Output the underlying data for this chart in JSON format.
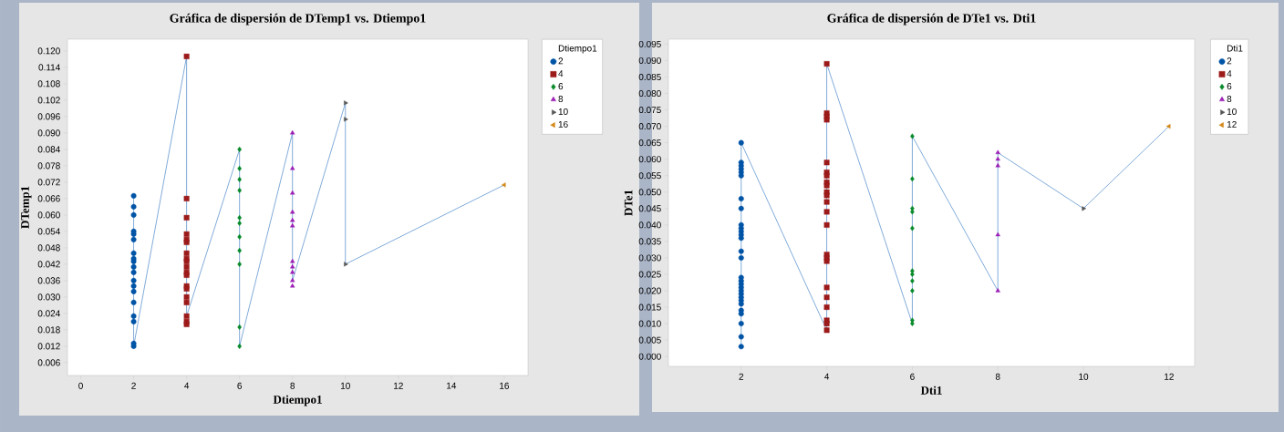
{
  "chart_data": [
    {
      "type": "scatter",
      "title": "Gráfica de dispersión de DTemp1 vs. Dtiempo1",
      "xlabel": "Dtiempo1",
      "ylabel": "DTemp1",
      "legend_title": "Dtiempo1",
      "legend": "right",
      "xlim": [
        -0.5,
        16.9
      ],
      "ylim": [
        0.0013,
        0.1243
      ],
      "xticks": [
        0,
        2,
        4,
        6,
        8,
        10,
        12,
        14,
        16
      ],
      "yticks": [
        0.006,
        0.012,
        0.018,
        0.024,
        {
          "value": 0.03,
          "label": "0.030"
        },
        0.036,
        0.042,
        0.048,
        0.054,
        {
          "value": 0.06,
          "label": "0.060"
        },
        0.066,
        0.072,
        0.078,
        0.084,
        {
          "value": 0.09,
          "label": "0.090"
        },
        0.096,
        0.102,
        0.108,
        0.114,
        {
          "value": 0.12,
          "label": "0.120"
        }
      ],
      "series": [
        {
          "type": "line",
          "color": "#4a86c8",
          "x": [
            2,
            2,
            4,
            4,
            6,
            6,
            8,
            8,
            10,
            10,
            16
          ],
          "values": [
            0.067,
            0.012,
            0.118,
            0.023,
            0.084,
            0.012,
            0.09,
            0.036,
            0.101,
            0.042,
            0.071
          ]
        },
        {
          "name": "2",
          "marker": "circle",
          "color": "#0054a6",
          "x": [
            2,
            2,
            2,
            2,
            2,
            2,
            2,
            2,
            2,
            2,
            2,
            2,
            2,
            2,
            2,
            2,
            2,
            2,
            2
          ],
          "values": [
            0.067,
            0.063,
            0.06,
            0.054,
            0.053,
            0.051,
            0.046,
            0.044,
            0.043,
            0.041,
            0.039,
            0.036,
            0.034,
            0.032,
            0.028,
            0.023,
            0.021,
            0.013,
            0.012
          ]
        },
        {
          "name": "4",
          "marker": "square",
          "color": "#9c1a1a",
          "x": [
            4,
            4,
            4,
            4,
            4,
            4,
            4,
            4,
            4,
            4,
            4,
            4,
            4,
            4,
            4,
            4,
            4,
            4,
            4
          ],
          "values": [
            0.118,
            0.066,
            0.059,
            0.053,
            0.051,
            0.05,
            0.046,
            0.044,
            0.043,
            0.041,
            0.039,
            0.038,
            0.034,
            0.033,
            0.03,
            0.028,
            0.023,
            0.021,
            0.02
          ]
        },
        {
          "name": "6",
          "marker": "diamond",
          "color": "#088a2a",
          "x": [
            6,
            6,
            6,
            6,
            6,
            6,
            6,
            6,
            6,
            6,
            6
          ],
          "values": [
            0.084,
            0.077,
            0.073,
            0.069,
            0.059,
            0.057,
            0.052,
            0.047,
            0.042,
            0.019,
            0.012
          ]
        },
        {
          "name": "8",
          "marker": "triangle",
          "color": "#9b1fb5",
          "x": [
            8,
            8,
            8,
            8,
            8,
            8,
            8,
            8,
            8,
            8,
            8
          ],
          "values": [
            0.09,
            0.077,
            0.068,
            0.061,
            0.058,
            0.056,
            0.043,
            0.041,
            0.039,
            0.036,
            0.034
          ]
        },
        {
          "name": "10",
          "marker": "triangle-right",
          "color": "#555555",
          "x": [
            10,
            10,
            10
          ],
          "values": [
            0.101,
            0.095,
            0.042
          ]
        },
        {
          "name": "16",
          "marker": "triangle-left",
          "color": "#d4891a",
          "x": [
            16
          ],
          "values": [
            0.071
          ]
        }
      ]
    },
    {
      "type": "scatter",
      "title": "Gráfica de dispersión de DTe1 vs. Dti1",
      "xlabel": "Dti1",
      "ylabel": "DTe1",
      "legend_title": "Dti1",
      "legend": "right",
      "xlim": [
        0.3,
        12.6
      ],
      "ylim": [
        -0.003,
        0.0965
      ],
      "xticks": [
        2,
        4,
        6,
        8,
        10,
        12
      ],
      "yticks": [
        {
          "value": 0,
          "label": "0.000"
        },
        0.005,
        {
          "value": 0.01,
          "label": "0.010"
        },
        0.015,
        {
          "value": 0.02,
          "label": "0.020"
        },
        0.025,
        {
          "value": 0.03,
          "label": "0.030"
        },
        0.035,
        {
          "value": 0.04,
          "label": "0.040"
        },
        0.045,
        {
          "value": 0.05,
          "label": "0.050"
        },
        0.055,
        {
          "value": 0.06,
          "label": "0.060"
        },
        0.065,
        {
          "value": 0.07,
          "label": "0.070"
        },
        0.075,
        {
          "value": 0.08,
          "label": "0.080"
        },
        0.085,
        {
          "value": 0.09,
          "label": "0.090"
        },
        0.095
      ],
      "series": [
        {
          "type": "line",
          "color": "#4a86c8",
          "x": [
            2,
            2,
            4,
            4,
            6,
            6,
            8,
            8,
            10,
            12
          ],
          "values": [
            0.003,
            0.065,
            0.008,
            0.089,
            0.01,
            0.067,
            0.02,
            0.062,
            0.045,
            0.07
          ]
        },
        {
          "name": "2",
          "marker": "circle",
          "color": "#0054a6",
          "x": [
            2,
            2,
            2,
            2,
            2,
            2,
            2,
            2,
            2,
            2,
            2,
            2,
            2,
            2,
            2,
            2,
            2,
            2,
            2,
            2,
            2,
            2,
            2,
            2,
            2,
            2,
            2,
            2,
            2
          ],
          "values": [
            0.065,
            0.059,
            0.058,
            0.057,
            0.056,
            0.055,
            0.048,
            0.045,
            0.04,
            0.039,
            0.038,
            0.037,
            0.036,
            0.032,
            0.03,
            0.024,
            0.023,
            0.022,
            0.021,
            0.02,
            0.019,
            0.018,
            0.017,
            0.016,
            0.014,
            0.013,
            0.01,
            0.006,
            0.003
          ]
        },
        {
          "name": "4",
          "marker": "square",
          "color": "#9c1a1a",
          "x": [
            4,
            4,
            4,
            4,
            4,
            4,
            4,
            4,
            4,
            4,
            4,
            4,
            4,
            4,
            4,
            4,
            4,
            4,
            4,
            4,
            4,
            4,
            4
          ],
          "values": [
            0.089,
            0.074,
            0.073,
            0.072,
            0.059,
            0.056,
            0.055,
            0.053,
            0.052,
            0.05,
            0.049,
            0.047,
            0.044,
            0.04,
            0.031,
            0.03,
            0.029,
            0.021,
            0.018,
            0.015,
            0.011,
            0.01,
            0.008
          ]
        },
        {
          "name": "6",
          "marker": "diamond",
          "color": "#088a2a",
          "x": [
            6,
            6,
            6,
            6,
            6,
            6,
            6,
            6,
            6,
            6,
            6
          ],
          "values": [
            0.067,
            0.054,
            0.045,
            0.044,
            0.039,
            0.026,
            0.025,
            0.023,
            0.02,
            0.011,
            0.01
          ]
        },
        {
          "name": "8",
          "marker": "triangle",
          "color": "#9b1fb5",
          "x": [
            8,
            8,
            8,
            8,
            8
          ],
          "values": [
            0.062,
            0.06,
            0.058,
            0.037,
            0.02
          ]
        },
        {
          "name": "10",
          "marker": "triangle-right",
          "color": "#555555",
          "x": [
            10
          ],
          "values": [
            0.045
          ]
        },
        {
          "name": "12",
          "marker": "triangle-left",
          "color": "#d4891a",
          "x": [
            12
          ],
          "values": [
            0.07
          ]
        }
      ]
    }
  ]
}
